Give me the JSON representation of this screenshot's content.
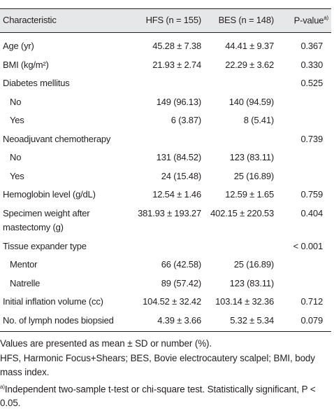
{
  "table": {
    "header": {
      "characteristic": "Characteristic",
      "hfs": "HFS (n = 155)",
      "bes": "BES (n = 148)",
      "p_value": "P-value",
      "p_value_mark": "a)"
    },
    "rows": [
      {
        "label": "Age (yr)",
        "hfs": "45.28 ± 7.38",
        "bes": "44.41 ± 9.37",
        "p": "0.367"
      },
      {
        "label": "BMI (kg/m²)",
        "hfs": "21.93 ± 2.74",
        "bes": "22.29 ± 3.62",
        "p": "0.330"
      },
      {
        "label": "Diabetes mellitus",
        "p": "0.525",
        "subrows": [
          {
            "label": "No",
            "hfs": "149 (96.13)",
            "bes": "140 (94.59)"
          },
          {
            "label": "Yes",
            "hfs": "6 (3.87)",
            "bes": "8 (5.41)"
          }
        ]
      },
      {
        "label": "Neoadjuvant chemotherapy",
        "p": "0.739",
        "subrows": [
          {
            "label": "No",
            "hfs": "131 (84.52)",
            "bes": "123 (83.11)"
          },
          {
            "label": "Yes",
            "hfs": "24 (15.48)",
            "bes": "25 (16.89)"
          }
        ]
      },
      {
        "label": "Hemoglobin level (g/dL)",
        "hfs": "12.54 ± 1.46",
        "bes": "12.59 ± 1.65",
        "p": "0.759"
      },
      {
        "label": "Specimen weight after mastectomy (g)",
        "hfs": "381.93 ± 193.27",
        "bes": "402.15 ± 220.53",
        "p": "0.404"
      },
      {
        "label": "Tissue expander type",
        "p": "< 0.001",
        "subrows": [
          {
            "label": "Mentor",
            "hfs": "66 (42.58)",
            "bes": "25 (16.89)"
          },
          {
            "label": "Natrelle",
            "hfs": "89 (57.42)",
            "bes": "123 (83.11)"
          }
        ]
      },
      {
        "label": "Initial inflation volume (cc)",
        "hfs": "104.52 ± 32.42",
        "bes": "103.14 ± 32.36",
        "p": "0.712"
      },
      {
        "label": "No. of lymph nodes biopsied",
        "hfs": "4.39 ± 3.66",
        "bes": "5.32 ± 5.34",
        "p": "0.079"
      }
    ]
  },
  "notes": [
    "Values are presented as mean ± SD or number (%).",
    "HFS, Harmonic Focus+Shears; BES, Bovie electrocautery scalpel; BMI, body mass index.",
    {
      "mark": "a)",
      "text": "Independent two-sample t-test or chi-square test. Statistically significant, P < 0.05."
    }
  ]
}
